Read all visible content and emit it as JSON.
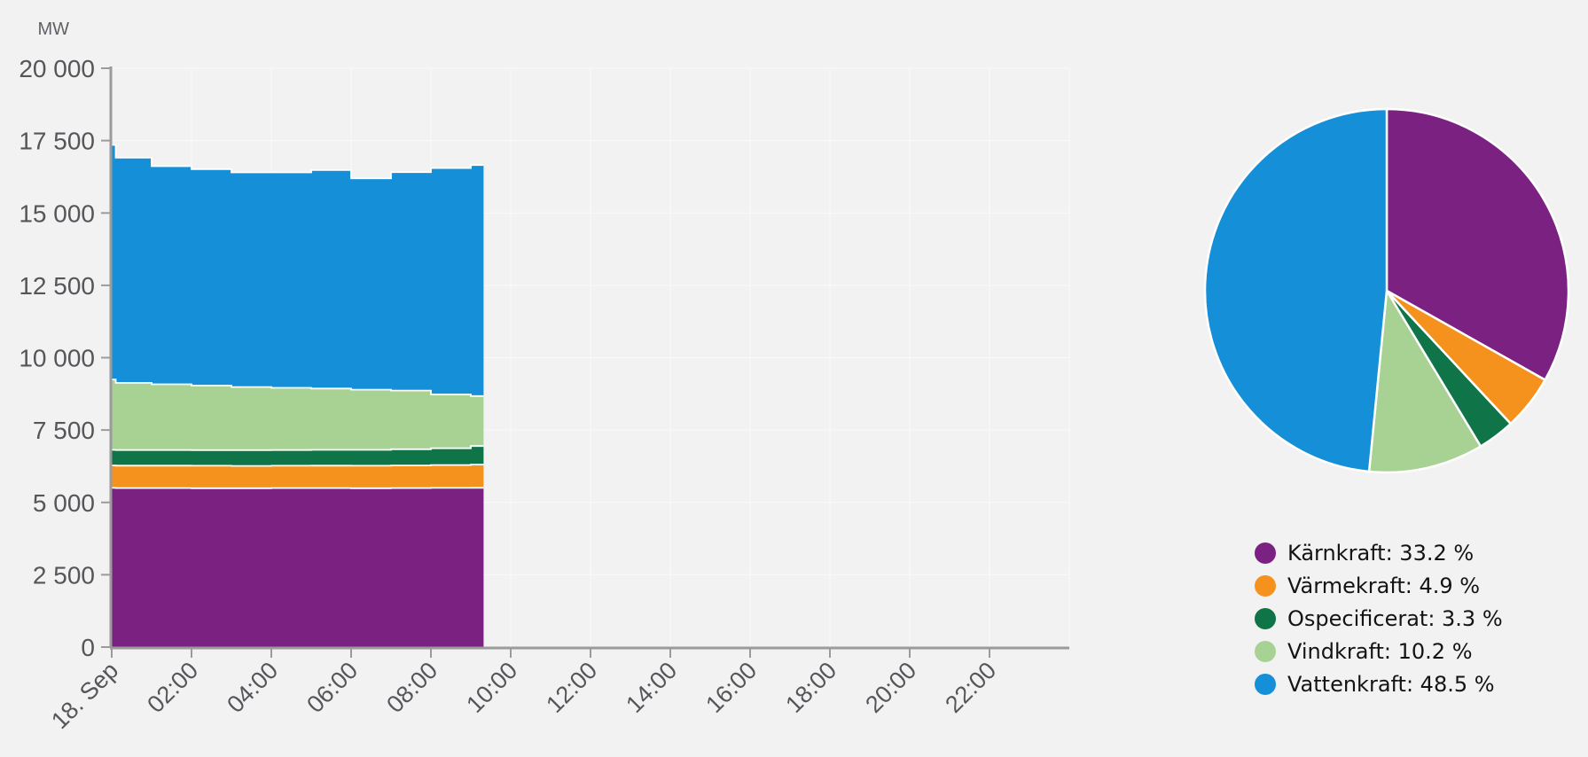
{
  "background_color": "#f2f2f2",
  "axis": {
    "unit_label": "MW",
    "y_tick_labels": [
      "0",
      "2 500",
      "5 000",
      "7 500",
      "10 000",
      "12 500",
      "15 000",
      "17 500",
      "20 000"
    ],
    "x_tick_labels": [
      "18. Sep",
      "02:00",
      "04:00",
      "06:00",
      "08:00",
      "10:00",
      "12:00",
      "14:00",
      "16:00",
      "18:00",
      "20:00",
      "22:00"
    ],
    "axis_line_color": "#9b9b9b",
    "label_color": "#55555a"
  },
  "legend": {
    "items": [
      {
        "label": "Kärnkraft",
        "value": "33.2 %",
        "text": "Kärnkraft: 33.2 %",
        "color": "#7b2182"
      },
      {
        "label": "Värmekraft",
        "value": "4.9 %",
        "text": "Värmekraft: 4.9 %",
        "color": "#f5921e"
      },
      {
        "label": "Ospecificerat",
        "value": "3.3 %",
        "text": "Ospecificerat: 3.3 %",
        "color": "#0f7447"
      },
      {
        "label": "Vindkraft",
        "value": "10.2 %",
        "text": "Vindkraft: 10.2 %",
        "color": "#a7d294"
      },
      {
        "label": "Vattenkraft",
        "value": "48.5 %",
        "text": "Vattenkraft: 48.5 %",
        "color": "#148fd8"
      }
    ]
  },
  "chart_data": [
    {
      "type": "area",
      "stacked": true,
      "step": "after",
      "unit": "MW",
      "ylabel": "MW",
      "ylim": [
        0,
        20000
      ],
      "ytick_interval": 2500,
      "xlim_hours": [
        0,
        24
      ],
      "xtick_hours": [
        0,
        2,
        4,
        6,
        8,
        10,
        12,
        14,
        16,
        18,
        20,
        22
      ],
      "xtick_labels": [
        "18. Sep",
        "02:00",
        "04:00",
        "06:00",
        "08:00",
        "10:00",
        "12:00",
        "14:00",
        "16:00",
        "18:00",
        "20:00",
        "22:00"
      ],
      "grid": true,
      "times_hours": [
        0,
        0.1,
        1,
        2,
        3,
        4,
        5,
        6,
        7,
        8,
        9,
        9.32
      ],
      "series": [
        {
          "name": "Kärnkraft",
          "color": "#7b2182",
          "values": [
            5500,
            5495,
            5495,
            5490,
            5490,
            5495,
            5495,
            5490,
            5495,
            5500,
            5505,
            5505
          ]
        },
        {
          "name": "Värmekraft",
          "color": "#f5921e",
          "values": [
            775,
            775,
            775,
            775,
            770,
            770,
            775,
            775,
            780,
            790,
            800,
            800
          ]
        },
        {
          "name": "Ospecificerat",
          "color": "#0f7447",
          "values": [
            540,
            540,
            540,
            540,
            545,
            545,
            545,
            550,
            560,
            580,
            640,
            640
          ]
        },
        {
          "name": "Vindkraft",
          "color": "#a7d294",
          "values": [
            2430,
            2320,
            2270,
            2230,
            2180,
            2150,
            2120,
            2080,
            2030,
            1860,
            1730,
            1730
          ]
        },
        {
          "name": "Vattenkraft",
          "color": "#148fd8",
          "values": [
            8105,
            7780,
            7535,
            7480,
            7415,
            7440,
            7545,
            7300,
            7545,
            7820,
            7980,
            7980
          ]
        }
      ]
    },
    {
      "type": "pie",
      "labels": [
        "Kärnkraft",
        "Värmekraft",
        "Ospecificerat",
        "Vindkraft",
        "Vattenkraft"
      ],
      "values": [
        33.2,
        4.9,
        3.3,
        10.2,
        48.5
      ],
      "unit": "%",
      "colors": [
        "#7b2182",
        "#f5921e",
        "#0f7447",
        "#a7d294",
        "#148fd8"
      ],
      "start_angle_deg": 0,
      "clockwise": true,
      "legend_position": "bottom-right"
    }
  ]
}
